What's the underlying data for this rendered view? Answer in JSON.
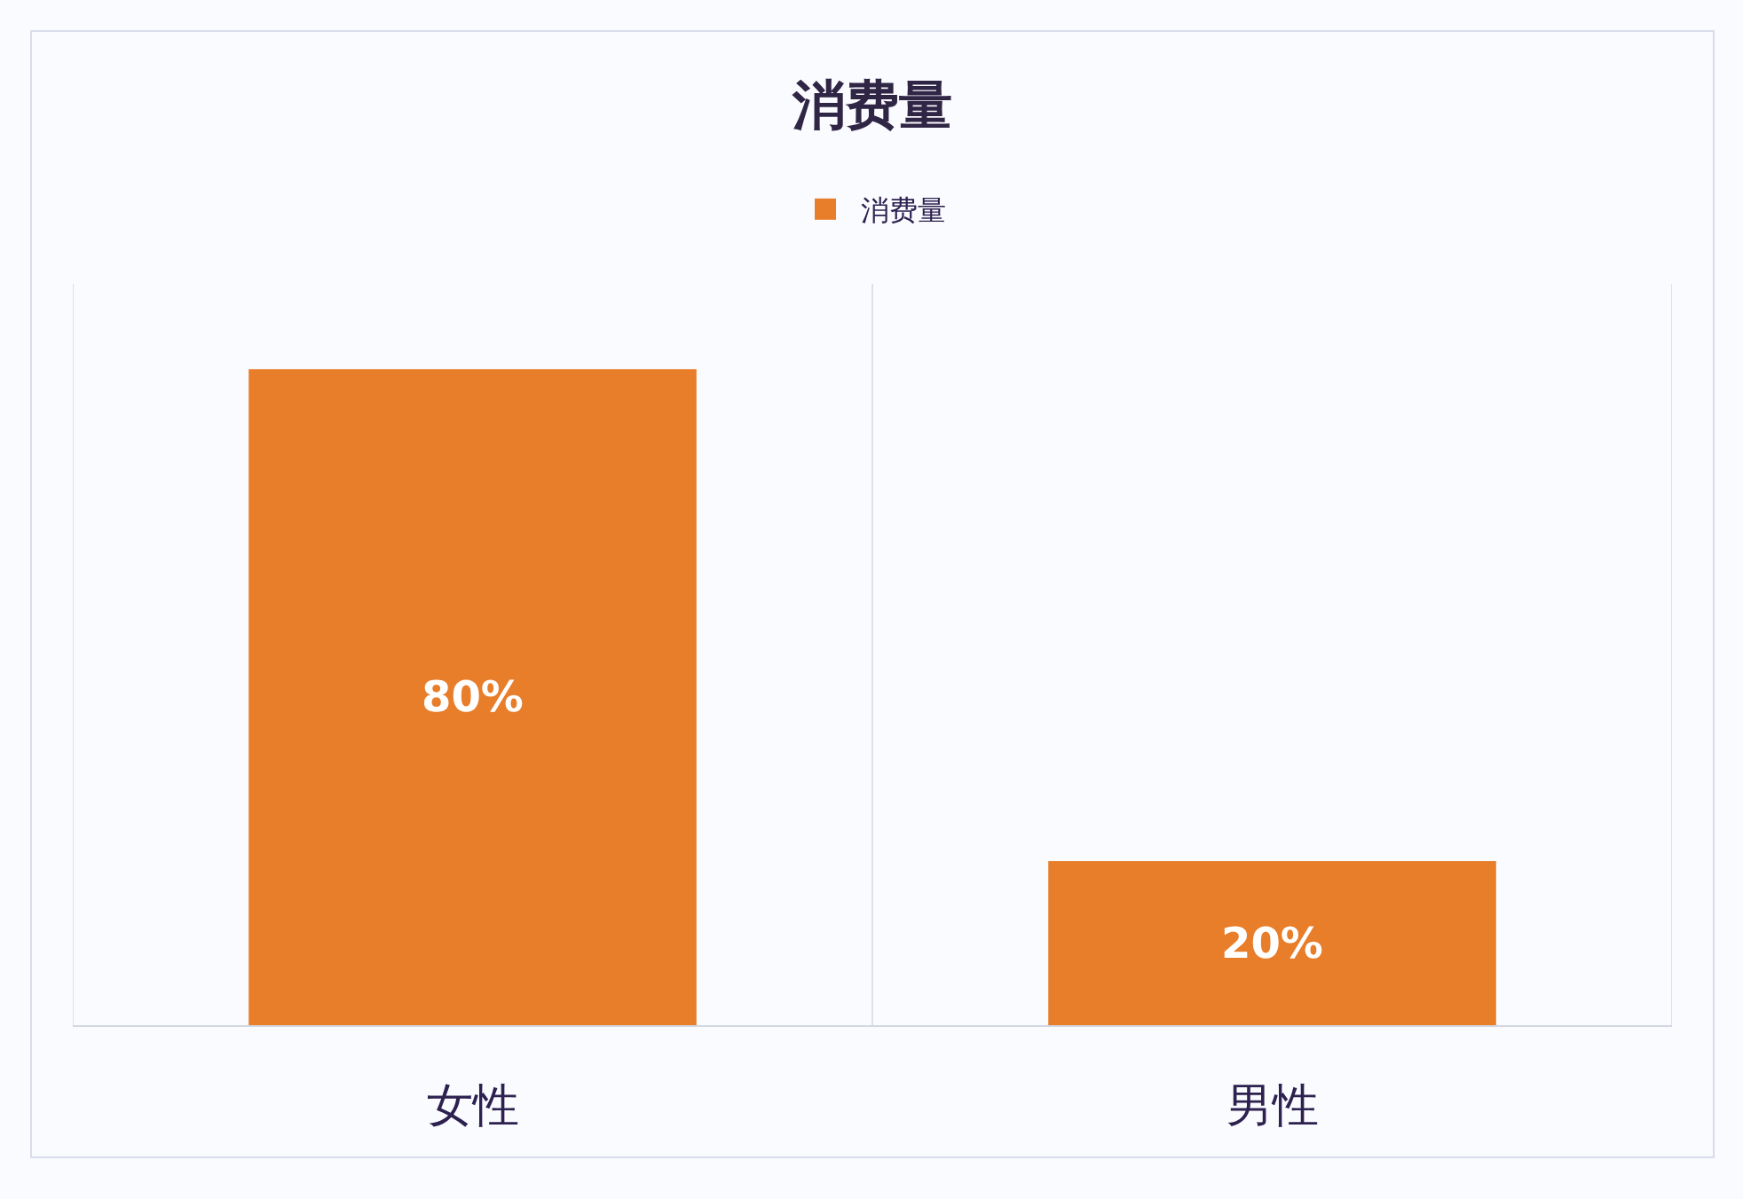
{
  "chart_data": {
    "type": "bar",
    "title": "消费量",
    "categories": [
      "女性",
      "男性"
    ],
    "series": [
      {
        "name": "消费量",
        "color": "#e87d2a",
        "values": [
          80,
          20
        ],
        "value_labels": [
          "80%",
          "20%"
        ]
      }
    ],
    "legend": "top",
    "grid": "x",
    "tick_labels": "x"
  }
}
